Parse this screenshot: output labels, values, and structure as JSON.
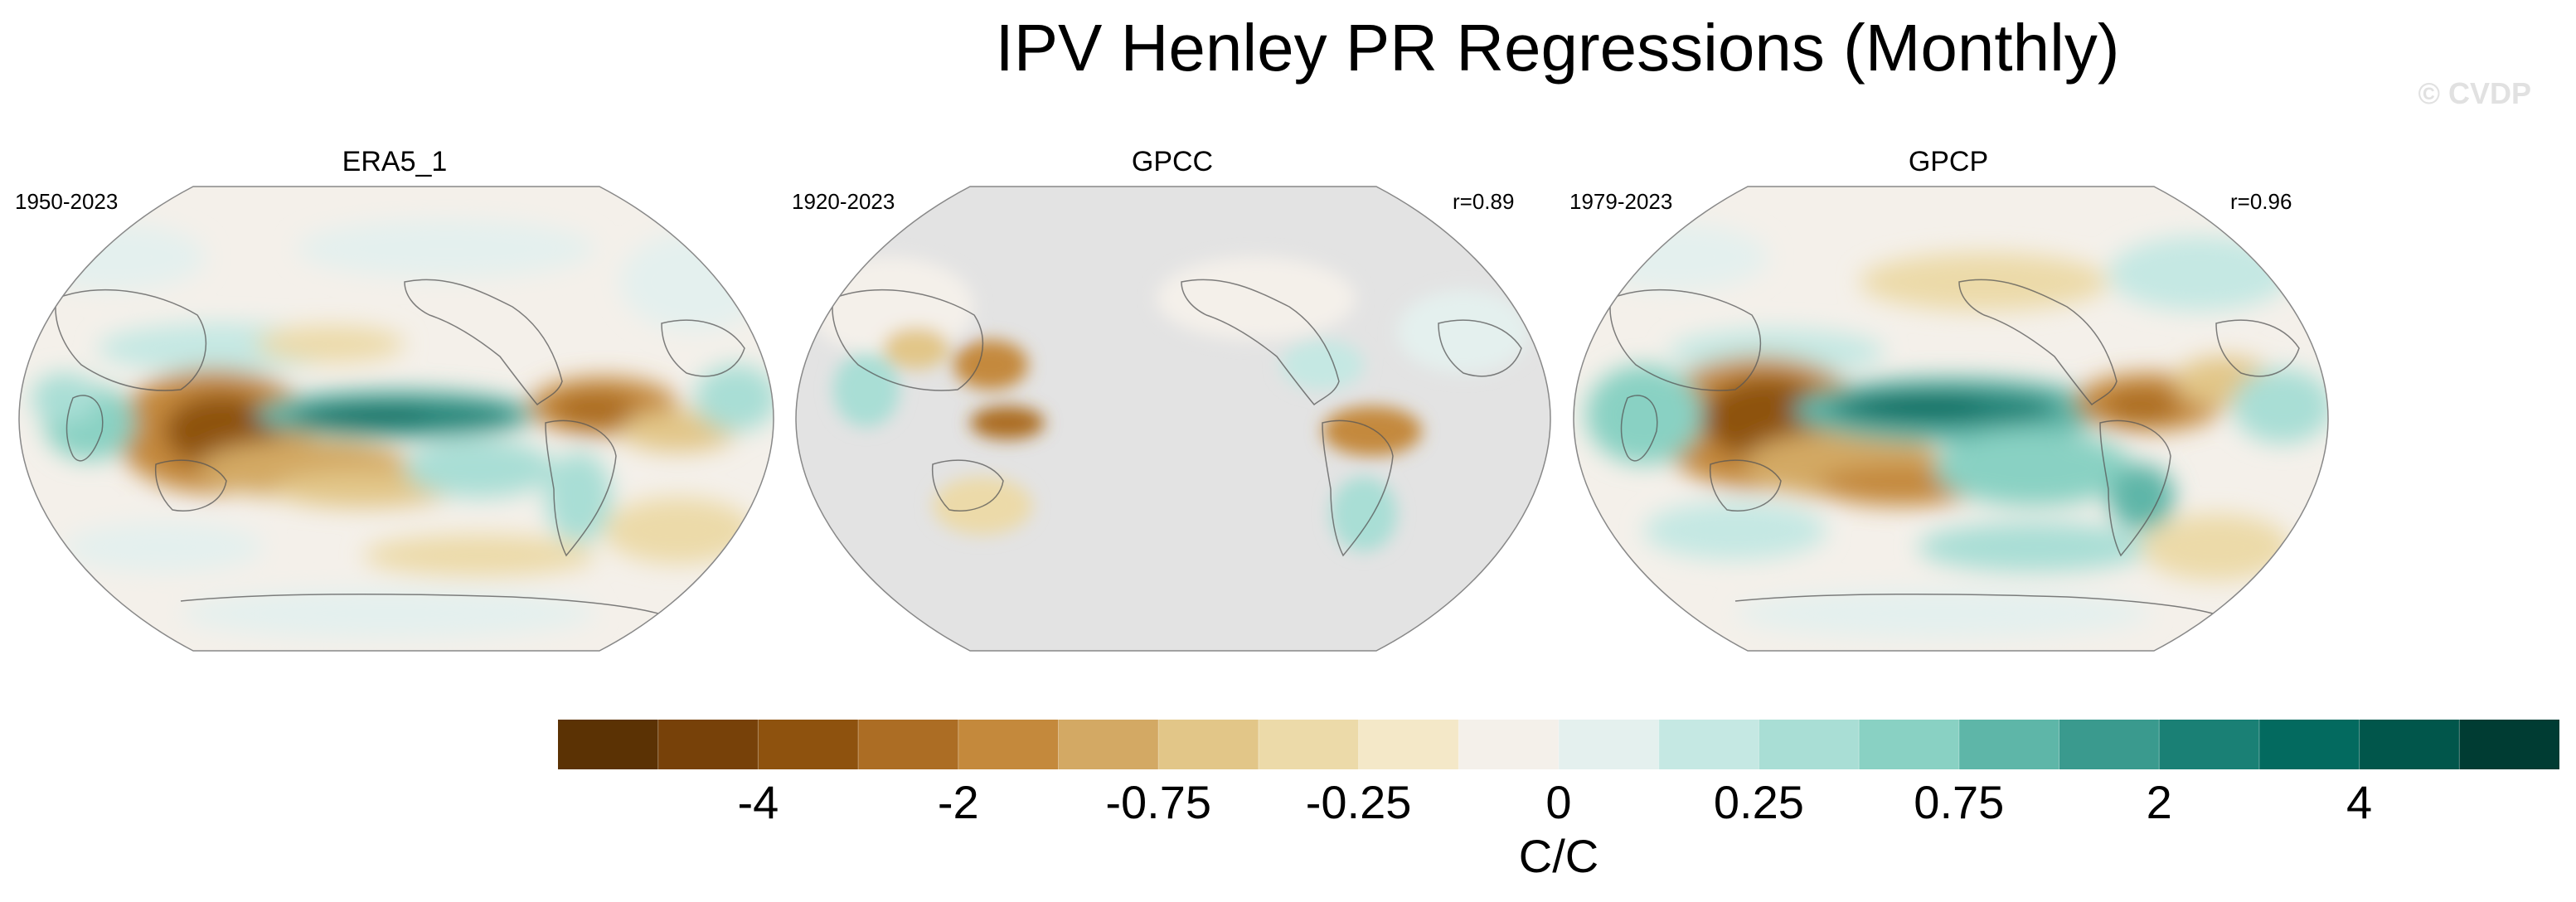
{
  "title": "IPV Henley PR Regressions (Monthly)",
  "watermark": "© CVDP",
  "panels": [
    {
      "name": "ERA5_1",
      "years": "1950-2023",
      "r": ""
    },
    {
      "name": "GPCC",
      "years": "1920-2023",
      "r": "r=0.89"
    },
    {
      "name": "GPCP",
      "years": "1979-2023",
      "r": "r=0.96"
    }
  ],
  "colorbar": {
    "labels": [
      "-4",
      "-2",
      "-0.75",
      "-0.25",
      "0",
      "0.25",
      "0.75",
      "2",
      "4"
    ],
    "units": "C/C",
    "colors": [
      "#5b3204",
      "#774109",
      "#8e520e",
      "#ac6d24",
      "#c4893c",
      "#d3a964",
      "#e2c688",
      "#ecdaa9",
      "#f4e8c8",
      "#f4f0ea",
      "#e4f0ee",
      "#c5e8e3",
      "#a9ded5",
      "#89d1c3",
      "#5eb6a8",
      "#3a9a8e",
      "#1a8075",
      "#036a5f",
      "#01564b",
      "#003c33"
    ]
  },
  "colors": {
    "land_mask": "#e3e3e3",
    "ocean_neutral": "#f4f0ea"
  }
}
